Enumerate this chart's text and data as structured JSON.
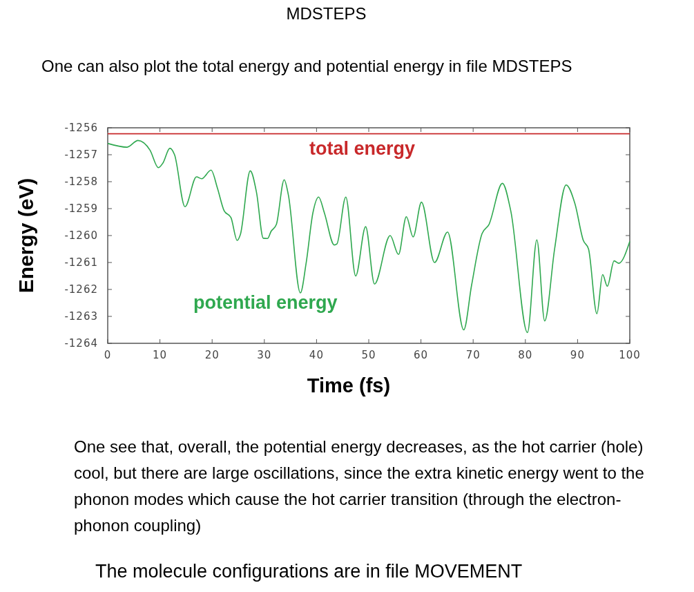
{
  "chart_data": {
    "type": "line",
    "title": "MDSTEPS",
    "subtitle": "One can also plot the total energy and potential energy in file MDSTEPS",
    "xlabel": "Time (fs)",
    "ylabel": "Energy (eV)",
    "xlim": [
      0,
      100
    ],
    "xticks": [
      0,
      10,
      20,
      30,
      40,
      50,
      60,
      70,
      80,
      90,
      100
    ],
    "ylim": [
      -1264,
      -1256
    ],
    "yticks": [
      -1264,
      -1263,
      -1262,
      -1261,
      -1260,
      -1259,
      -1258,
      -1257,
      -1256
    ],
    "grid": false,
    "series": [
      {
        "name": "total energy",
        "color": "#c8282a",
        "x": [
          0,
          100
        ],
        "values": [
          -1256.22,
          -1256.22
        ]
      },
      {
        "name": "potential energy",
        "color": "#2fa84f",
        "x": [
          0,
          3.7,
          5.8,
          8.1,
          9.7,
          10.6,
          11.9,
          12.8,
          14.8,
          17,
          18,
          19.8,
          21,
          22.3,
          23.6,
          24.8,
          25.4,
          27.3,
          28.5,
          29.8,
          30.6,
          31.3,
          32.3,
          33.8,
          34.6,
          36.9,
          38,
          39.3,
          40.4,
          41.5,
          43.4,
          43.9,
          45.6,
          47.5,
          49.4,
          51.1,
          54.1,
          55.7,
          57.2,
          58.5,
          60.1,
          62.6,
          65.1,
          68.2,
          69.7,
          71.7,
          73,
          75.6,
          77.2,
          80.4,
          82.2,
          83.7,
          85.6,
          87.8,
          89.5,
          91.1,
          92.1,
          93.7,
          94.8,
          95.7,
          97,
          97.9,
          100
        ],
        "values": [
          -1256.58,
          -1256.72,
          -1256.47,
          -1256.83,
          -1257.48,
          -1257.3,
          -1256.76,
          -1257,
          -1258.93,
          -1257.82,
          -1257.89,
          -1257.57,
          -1258.23,
          -1259.08,
          -1259.33,
          -1260.18,
          -1259.97,
          -1257.6,
          -1258.4,
          -1260.1,
          -1260.11,
          -1259.84,
          -1259.59,
          -1257.93,
          -1258.49,
          -1262.13,
          -1261.03,
          -1259.16,
          -1258.57,
          -1259.16,
          -1260.35,
          -1260.31,
          -1258.57,
          -1261.5,
          -1259.67,
          -1261.8,
          -1260,
          -1260.7,
          -1259.3,
          -1260.05,
          -1258.76,
          -1261,
          -1259.87,
          -1263.5,
          -1261.84,
          -1259.93,
          -1259.6,
          -1258.06,
          -1259.08,
          -1263.6,
          -1260.16,
          -1263.17,
          -1260.5,
          -1258.12,
          -1258.82,
          -1260.18,
          -1260.5,
          -1262.9,
          -1261.45,
          -1261.88,
          -1260.94,
          -1261.03,
          -1260.22
        ]
      }
    ],
    "annotations": [
      "One see that, overall, the potential energy decreases, as the hot carrier (hole) cool, but there are large oscillations, since the extra kinetic energy went to the phonon modes which cause the hot carrier transition (through the electron-phonon coupling)",
      "The molecule configurations are in file MOVEMENT"
    ]
  }
}
